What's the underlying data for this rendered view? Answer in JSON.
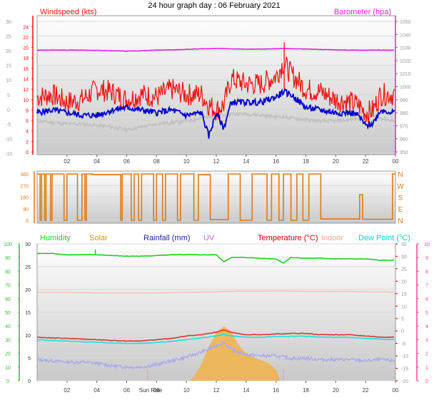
{
  "title": "24 hour graph day : 06 February 2021",
  "colors": {
    "wind": "#ee1111",
    "gust_avg": "#0000cc",
    "baro": "#dd22dd",
    "temp": "#dd3333",
    "humidity": "#22cc22",
    "dew": "#22dddd",
    "indoor": "#f4c4b4",
    "rain": "#aaaaee",
    "solar": "#f4b040",
    "winddir": "#d97b1c",
    "uv": "#cc6688",
    "grey": "#c0c0c0",
    "left_axis_green": "#33bb33",
    "right_axis_pink": "#ee4499"
  },
  "x_ticks": [
    "02",
    "04",
    "06",
    "08",
    "10",
    "12",
    "14",
    "16",
    "18",
    "20",
    "22",
    "00"
  ],
  "sunrise_label": "Sun Rise",
  "chart_data": [
    {
      "type": "line",
      "title": "",
      "left_label": "Windspeed (kts)",
      "right_label": "Barometer (hpa)",
      "left_ticks_grey": [
        "30",
        "25",
        "20",
        "15",
        "10",
        "5",
        "0",
        "-5",
        "-10",
        "-15"
      ],
      "left_ticks_red": [
        "24",
        "22",
        "20",
        "18",
        "16",
        "14",
        "12",
        "10",
        "8",
        "6",
        "4",
        "2",
        "0"
      ],
      "right_ticks": [
        "1050",
        "1040",
        "1030",
        "1020",
        "1010",
        "1000",
        "990",
        "980",
        "970",
        "960",
        "950"
      ],
      "ylim_red": [
        0,
        25
      ],
      "ylim_baro": [
        950,
        1050
      ],
      "x_hours": [
        0,
        1,
        2,
        3,
        4,
        5,
        6,
        7,
        8,
        9,
        10,
        11,
        11.5,
        12,
        12.5,
        13,
        14,
        15,
        16,
        16.5,
        17,
        18,
        19,
        20,
        21,
        21.5,
        22,
        22.5,
        23,
        24
      ],
      "series": [
        {
          "name": "Windspeed (kts)",
          "values": [
            10.5,
            11,
            9.5,
            10,
            12,
            11.5,
            10,
            11,
            10.5,
            12,
            11,
            11,
            9,
            8,
            9,
            14,
            13,
            13,
            14.5,
            17,
            15,
            12,
            11.5,
            10,
            9.5,
            9,
            7.5,
            8,
            11,
            11
          ]
        },
        {
          "name": "",
          "values": [
            7.5,
            8,
            7.5,
            7,
            7,
            8,
            8.5,
            8,
            7.5,
            8,
            7,
            7.5,
            3,
            7.5,
            4.5,
            9.5,
            9.5,
            9.5,
            10.5,
            11.5,
            11,
            8.5,
            8,
            7.5,
            7.5,
            7,
            5,
            5.5,
            8,
            7.5
          ]
        },
        {
          "name": "Barometer (hpa)",
          "values": [
            1028,
            1028,
            1028,
            1028,
            1027.8,
            1027.5,
            1027.2,
            1027.5,
            1028,
            1028.2,
            1028.5,
            1029,
            1029,
            1029.2,
            1029.2,
            1029,
            1028.8,
            1028.8,
            1029,
            1029.2,
            1029,
            1028.8,
            1028.5,
            1028.2,
            1028,
            1028,
            1028,
            1028,
            1028,
            1028
          ]
        },
        {
          "name": "",
          "values": [
            -4,
            -4.5,
            -5,
            -5,
            -5.5,
            -6,
            -7,
            -6,
            -5,
            -4.5,
            -4,
            -3,
            -2.5,
            -2,
            -2,
            -1.5,
            -1.5,
            -2,
            -2.5,
            -2.5,
            -3,
            -3.5,
            -4,
            -4,
            -3.5,
            -3,
            -2.5,
            -2.5,
            -3,
            -4
          ]
        }
      ]
    },
    {
      "type": "line",
      "title": "",
      "left_ticks": [
        "360",
        "270",
        "180",
        "90",
        "0"
      ],
      "right_ticks": [
        "N",
        "W",
        "S",
        "E",
        "N"
      ],
      "ylim": [
        0,
        360
      ],
      "series": [
        {
          "name": "",
          "segments": [
            [
              0,
              0.2,
              360
            ],
            [
              0.2,
              0.3,
              0
            ],
            [
              0.3,
              0.5,
              360
            ],
            [
              0.5,
              0.6,
              0
            ],
            [
              0.6,
              0.9,
              360
            ],
            [
              0.9,
              1.0,
              0
            ],
            [
              1.0,
              1.8,
              360
            ],
            [
              1.8,
              2.0,
              0
            ],
            [
              2.0,
              2.7,
              360
            ],
            [
              2.7,
              3.0,
              0
            ],
            [
              3.0,
              3.2,
              360
            ],
            [
              3.2,
              3.3,
              0
            ],
            [
              3.3,
              3.7,
              360
            ],
            [
              3.7,
              5.6,
              355
            ],
            [
              5.6,
              5.7,
              0
            ],
            [
              5.7,
              6.3,
              360
            ],
            [
              6.3,
              6.5,
              0
            ],
            [
              6.5,
              6.8,
              360
            ],
            [
              6.8,
              7.0,
              0
            ],
            [
              7.0,
              7.8,
              360
            ],
            [
              7.8,
              8.0,
              0
            ],
            [
              8.0,
              8.4,
              360
            ],
            [
              8.4,
              8.6,
              0
            ],
            [
              8.6,
              8.8,
              360
            ],
            [
              8.8,
              9.4,
              360
            ],
            [
              9.4,
              9.6,
              0
            ],
            [
              9.6,
              10.5,
              360
            ],
            [
              10.5,
              10.8,
              0
            ],
            [
              10.8,
              11.6,
              355
            ],
            [
              11.6,
              12.8,
              5
            ],
            [
              12.8,
              13.6,
              360
            ],
            [
              13.6,
              14.4,
              0
            ],
            [
              14.4,
              15.4,
              360
            ],
            [
              15.4,
              15.7,
              0
            ],
            [
              15.7,
              16.2,
              360
            ],
            [
              16.2,
              16.5,
              0
            ],
            [
              16.5,
              17.0,
              360
            ],
            [
              17.0,
              17.4,
              0
            ],
            [
              17.4,
              17.8,
              360
            ],
            [
              17.8,
              18.2,
              0
            ],
            [
              18.2,
              19.0,
              360
            ],
            [
              19.0,
              21.6,
              10
            ],
            [
              21.6,
              21.8,
              200
            ],
            [
              21.8,
              23.8,
              8
            ],
            [
              23.8,
              24,
              360
            ]
          ]
        }
      ]
    },
    {
      "type": "line",
      "title": "",
      "legend": [
        "Humidity",
        "Solar",
        "Rainfall (mm)",
        "UV",
        "Temperature (°C)",
        "Indoor",
        "Dew Point (°C)"
      ],
      "left_ticks_grey": [
        "100",
        "90",
        "80",
        "70",
        "60",
        "50",
        "40",
        "30",
        "20",
        "10",
        "0"
      ],
      "left_ticks_red": [
        "30",
        "25",
        "20",
        "15",
        "10",
        "5",
        "0"
      ],
      "right_ticks_grey": [
        "35",
        "30",
        "25",
        "20",
        "15",
        "10",
        "5",
        "0",
        "-5",
        "-10",
        "-15",
        "-20"
      ],
      "right_ticks_pink": [
        "10",
        "9",
        "8",
        "7",
        "6",
        "5",
        "4",
        "3",
        "2",
        "1",
        "0"
      ],
      "ylim_left": [
        0,
        100
      ],
      "ylim_right": [
        -20,
        35
      ],
      "x_hours": [
        0,
        1,
        2,
        3,
        4,
        5,
        6,
        7,
        8,
        9,
        10,
        11,
        12,
        12.5,
        13,
        14,
        15,
        16,
        16.5,
        17,
        18,
        19,
        20,
        21,
        22,
        23,
        24
      ],
      "series": [
        {
          "name": "Humidity",
          "values": [
            93,
            93,
            92,
            92,
            92,
            91.5,
            91,
            91,
            91.5,
            92,
            92,
            92,
            92,
            87,
            90,
            90,
            89.5,
            89,
            86,
            90,
            89.5,
            89.5,
            89,
            89,
            89,
            88,
            88
          ]
        },
        {
          "name": "Temperature (°C)",
          "values": [
            -2.5,
            -2.8,
            -3,
            -3.2,
            -3.5,
            -3.8,
            -4,
            -4,
            -3.5,
            -3,
            -2,
            -1.5,
            -0.5,
            0.5,
            -0.5,
            -1.5,
            -1.5,
            -1.2,
            -1.2,
            -1,
            -1,
            -1.5,
            -1.5,
            -1.5,
            -2,
            -2.5,
            -2.5
          ]
        },
        {
          "name": "Dew Point (°C)",
          "values": [
            -3.5,
            -3.8,
            -4,
            -4.3,
            -4.5,
            -4.8,
            -5,
            -5,
            -4.6,
            -4.2,
            -3.5,
            -2.8,
            -2,
            -1.2,
            -2,
            -2.5,
            -2.5,
            -2.2,
            -2.2,
            -2.1,
            -2.1,
            -2.5,
            -2.5,
            -2.6,
            -3,
            -3.3,
            -3.5
          ]
        },
        {
          "name": "Indoor",
          "values": [
            15.5,
            15.5,
            15.5,
            15.4,
            15.3,
            15.2,
            15.2,
            15.2,
            15.3,
            15.4,
            15.5,
            15.6,
            15.7,
            15.8,
            15.9,
            16,
            16,
            16,
            16,
            16,
            15.9,
            15.9,
            15.8,
            15.8,
            15.7,
            15.7,
            15.6
          ]
        },
        {
          "name": "",
          "values": [
            -11.5,
            -12,
            -12.5,
            -12.5,
            -13,
            -14,
            -14.5,
            -14.5,
            -13.5,
            -12,
            -10.5,
            -8.5,
            -6,
            -4.5,
            -7.5,
            -9.5,
            -10,
            -10,
            -10.5,
            -11,
            -11,
            -11.5,
            -11.5,
            -11.5,
            -12,
            -11.5,
            -12
          ]
        }
      ],
      "solar_hours": [
        10.2,
        10.5,
        11,
        11.5,
        12,
        12.5,
        13,
        13.5,
        14,
        14.5,
        15,
        15.5,
        16,
        16.3
      ],
      "solar_values": [
        0,
        0.3,
        1.2,
        2.5,
        3.5,
        4,
        3.6,
        2.6,
        2,
        1.7,
        1.5,
        1.3,
        0.8,
        0
      ],
      "uv_hours": [
        11.5,
        12.5,
        13.5
      ],
      "uv_values": [
        0.2,
        0.4,
        0.2
      ]
    }
  ]
}
